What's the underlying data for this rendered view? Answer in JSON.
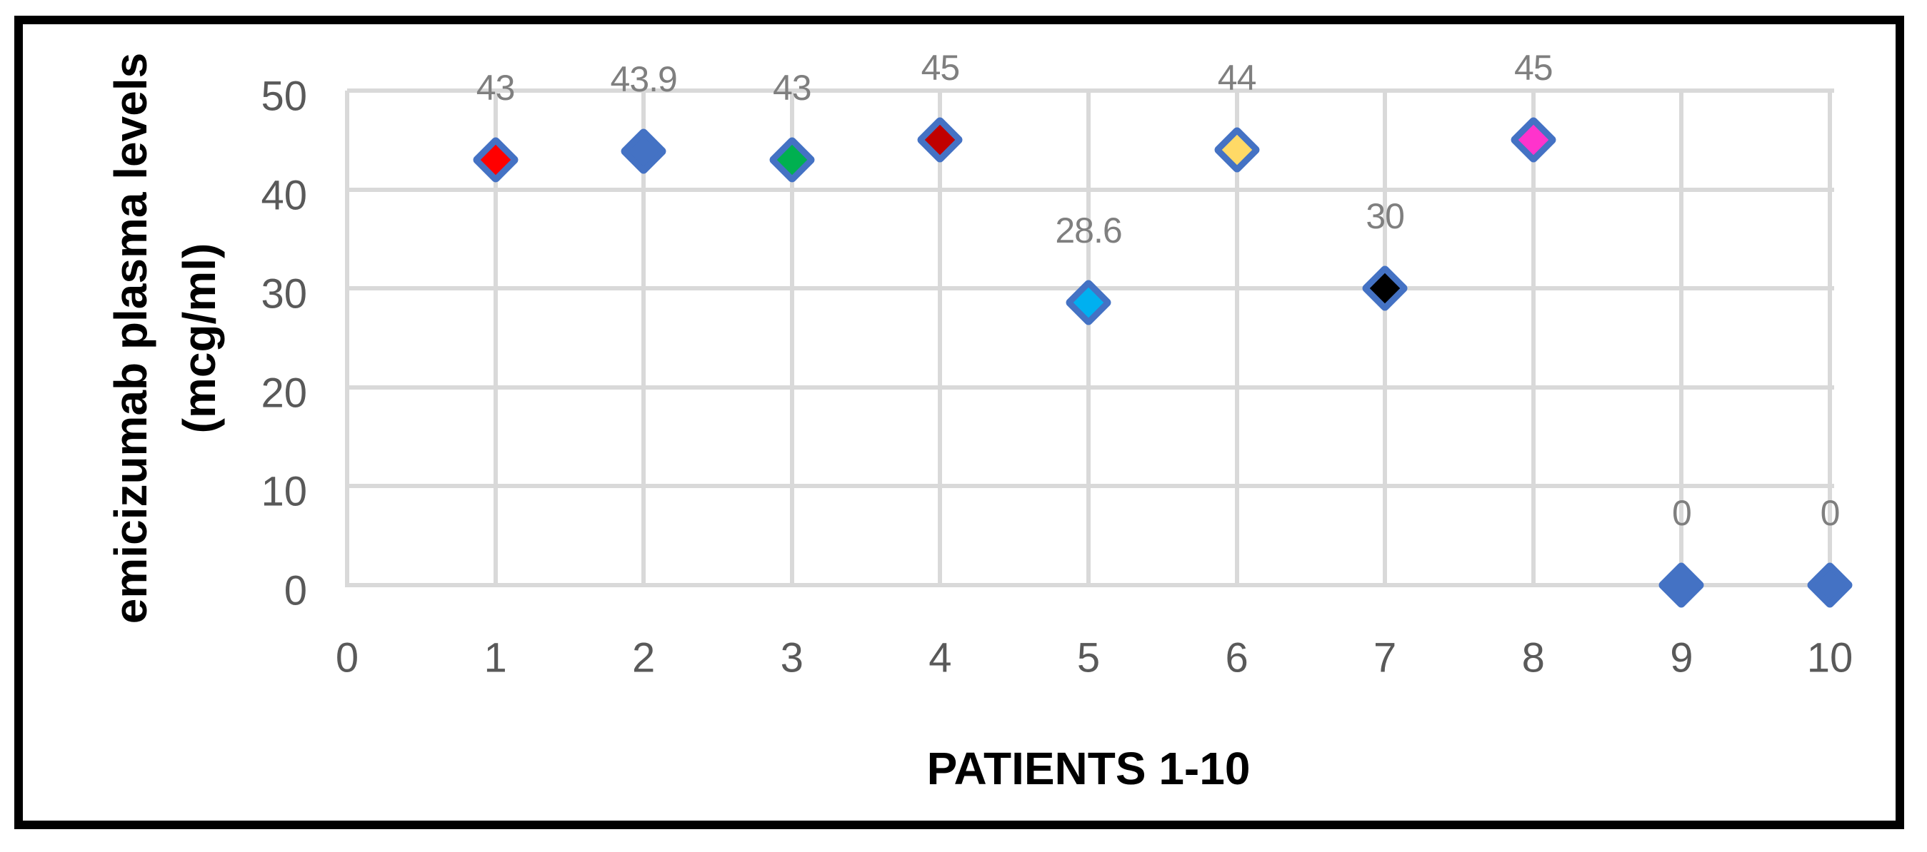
{
  "chart_data": {
    "type": "scatter",
    "title": "",
    "xlabel": "PATIENTS 1-10",
    "ylabel": "emicizumab plasma levels (mcg/ml)",
    "ylabel_lines": [
      "emicizumab plasma levels",
      "(mcg/ml)"
    ],
    "xlim": [
      0,
      10
    ],
    "ylim": [
      0,
      50
    ],
    "x_ticks": [
      "0",
      "1",
      "2",
      "3",
      "4",
      "5",
      "6",
      "7",
      "8",
      "9",
      "10"
    ],
    "y_ticks": [
      "0",
      "10",
      "20",
      "30",
      "40",
      "50"
    ],
    "grid": true,
    "legend": "none",
    "marker_shape": "diamond",
    "marker_border_color": "#4472C4",
    "points": [
      {
        "x": 1,
        "y": 43,
        "label": "43",
        "fill": "#FF0000"
      },
      {
        "x": 2,
        "y": 43.9,
        "label": "43.9",
        "fill": "#4472C4"
      },
      {
        "x": 3,
        "y": 43,
        "label": "43",
        "fill": "#00B050"
      },
      {
        "x": 4,
        "y": 45,
        "label": "45",
        "fill": "#C00000"
      },
      {
        "x": 5,
        "y": 28.6,
        "label": "28.6",
        "fill": "#00B0F0"
      },
      {
        "x": 6,
        "y": 44,
        "label": "44",
        "fill": "#FFD966"
      },
      {
        "x": 7,
        "y": 30,
        "label": "30",
        "fill": "#000000"
      },
      {
        "x": 8,
        "y": 45,
        "label": "45",
        "fill": "#FF33CC"
      },
      {
        "x": 9,
        "y": 0,
        "label": "0",
        "fill": "#4472C4"
      },
      {
        "x": 10,
        "y": 0,
        "label": "0",
        "fill": "#4472C4"
      }
    ],
    "colors": {
      "gridline": "#D9D9D9",
      "tick_text": "#595959",
      "data_label_text": "#7F7F7F",
      "axis_title_text": "#000000",
      "frame_border": "#000000",
      "background": "#FFFFFF"
    }
  }
}
